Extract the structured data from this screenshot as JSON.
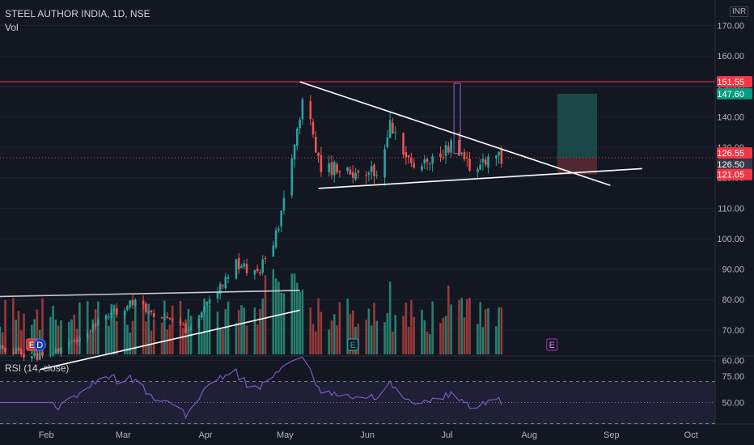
{
  "header": {
    "symbol_line": "STEEL AUTHOR INDIA, 1D, NSE",
    "volume_label": "Vol",
    "rsi_label": "RSI (14, close)",
    "currency": "INR"
  },
  "colors": {
    "up": "#26a69a",
    "down": "#ef5350",
    "vol_up": "#26806f",
    "vol_down": "#963a3a",
    "background": "#131722",
    "rsi_line": "#7e57c2",
    "resistance": "#f23645",
    "target_zone": "#1e5a55",
    "stop_zone": "#5e2a31"
  },
  "price_axis": {
    "ticks": [
      "60.00",
      "70.00",
      "80.00",
      "90.00",
      "100.00",
      "110.00",
      "120.00",
      "130.00",
      "140.00",
      "150.00",
      "160.00",
      "170.00"
    ],
    "tags": [
      {
        "label": "151.55",
        "value": 151.55,
        "color": "#f23645"
      },
      {
        "label": "147.60",
        "value": 147.6,
        "color": "#089981"
      },
      {
        "label": "126.55",
        "value": 126.55,
        "color": "#f23645"
      },
      {
        "label": "126.50",
        "value": 126.5,
        "color": "#363a45"
      },
      {
        "label": "121.05",
        "value": 121.05,
        "color": "#f23645"
      }
    ]
  },
  "rsi_axis": {
    "ticks": [
      "75.00",
      "50.00"
    ]
  },
  "time_axis": {
    "ticks": [
      "Feb",
      "Mar",
      "Apr",
      "May",
      "Jun",
      "Jul",
      "Aug",
      "Sep",
      "Oct"
    ]
  },
  "events": [
    {
      "label": "E",
      "type": "earnings",
      "date": "2024-01-29"
    },
    {
      "label": "D",
      "type": "dividend",
      "date": "2024-02-01"
    },
    {
      "label": "E",
      "type": "earnings",
      "date": "2024-05-29"
    },
    {
      "label": "E",
      "type": "earnings-upcoming",
      "date": "2024-08-12"
    }
  ],
  "chart_data": {
    "type": "candlestick",
    "title": "STEEL AUTHOR INDIA, 1D, NSE",
    "ylim": [
      55,
      172
    ],
    "xlim": [
      "2024-01-17",
      "2024-10-12"
    ],
    "resistance_level": 151.55,
    "trend_lines": [
      {
        "name": "upper-triangle",
        "from": [
          "2024-05-09",
          151.5
        ],
        "to": [
          "2024-09-03",
          117.5
        ]
      },
      {
        "name": "lower-triangle",
        "from": [
          "2024-05-16",
          116.5
        ],
        "to": [
          "2024-09-15",
          123.0
        ]
      },
      {
        "name": "horizontal-resistance",
        "from": [
          "2024-01-17",
          81.0
        ],
        "to": [
          "2024-05-09",
          83.0
        ]
      },
      {
        "name": "rising-support",
        "from": [
          "2024-02-01",
          57.0
        ],
        "to": [
          "2024-05-09",
          76.5
        ]
      }
    ],
    "position": {
      "entry": 126.5,
      "target": 147.6,
      "stop": 121.05,
      "start": "2024-08-14",
      "end": "2024-08-29"
    },
    "ohlc": [],
    "volume": [],
    "rsi": []
  }
}
